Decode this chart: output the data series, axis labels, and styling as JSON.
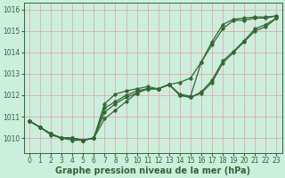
{
  "xlabel": "Graphe pression niveau de la mer (hPa)",
  "ylim": [
    1009.3,
    1016.3
  ],
  "xlim": [
    -0.5,
    23.5
  ],
  "yticks": [
    1010,
    1011,
    1012,
    1013,
    1014,
    1015,
    1016
  ],
  "xtick_labels": [
    "0",
    "1",
    "2",
    "3",
    "4",
    "5",
    "6",
    "7",
    "8",
    "9",
    "10",
    "11",
    "12",
    "13",
    "14",
    "15",
    "16",
    "17",
    "18",
    "19",
    "20",
    "21",
    "22",
    "23"
  ],
  "bg_color": "#cceedd",
  "grid_color": "#ddaaaa",
  "line_color": "#336633",
  "series": [
    [
      1010.8,
      1010.5,
      1010.2,
      1010.0,
      1010.0,
      1009.9,
      1010.0,
      1010.9,
      1011.3,
      1011.7,
      1012.1,
      1012.3,
      1012.3,
      1012.5,
      1012.0,
      1011.9,
      1012.1,
      1012.6,
      1013.5,
      1014.0,
      1014.5,
      1015.0,
      1015.2,
      1015.6
    ],
    [
      1010.8,
      1010.5,
      1010.2,
      1010.0,
      1010.0,
      1009.9,
      1010.0,
      1011.2,
      1011.6,
      1011.9,
      1012.1,
      1012.3,
      1012.3,
      1012.5,
      1012.0,
      1011.9,
      1012.15,
      1012.7,
      1013.6,
      1014.05,
      1014.55,
      1015.1,
      1015.3,
      1015.6
    ],
    [
      1010.8,
      1010.5,
      1010.2,
      1010.0,
      1010.0,
      1009.9,
      1010.0,
      1011.4,
      1011.7,
      1012.0,
      1012.2,
      1012.3,
      1012.3,
      1012.5,
      1012.05,
      1011.95,
      1013.55,
      1014.35,
      1015.1,
      1015.5,
      1015.5,
      1015.6,
      1015.6,
      1015.7
    ],
    [
      1010.8,
      1010.5,
      1010.15,
      1010.0,
      1009.9,
      1009.9,
      1010.0,
      1011.6,
      1012.05,
      1012.2,
      1012.3,
      1012.4,
      1012.3,
      1012.5,
      1012.6,
      1012.8,
      1013.55,
      1014.5,
      1015.3,
      1015.55,
      1015.6,
      1015.65,
      1015.65,
      1015.7
    ]
  ],
  "marker": "o",
  "markersize": 2.5,
  "linewidth": 0.9,
  "tick_fontsize": 5.5,
  "label_fontsize": 7,
  "label_fontweight": "bold",
  "label_color": "#336633",
  "tick_color": "#336633"
}
